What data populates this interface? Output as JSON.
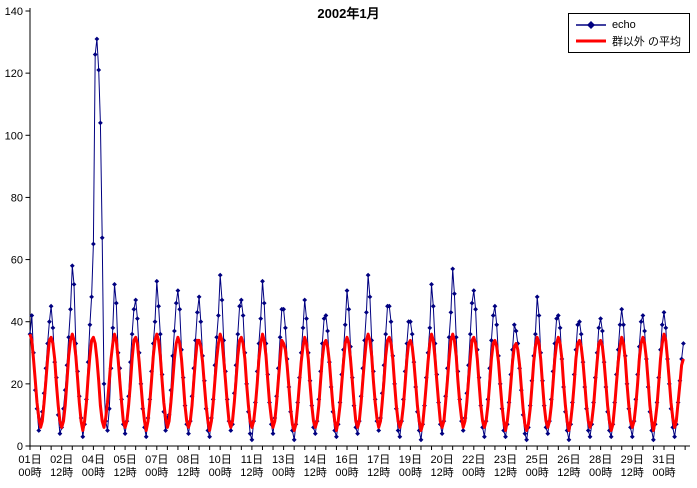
{
  "title": "2002年1月",
  "legend": {
    "items": [
      {
        "label": "echo",
        "color": "#000080",
        "marker": "diamond-line"
      },
      {
        "label": "群以外 の平均",
        "color": "#FF0000",
        "marker": "thick-line"
      }
    ]
  },
  "y_axis": {
    "min": 0,
    "max": 140,
    "ticks": [
      0,
      20,
      40,
      60,
      80,
      100,
      120,
      140
    ]
  },
  "x_axis": {
    "minor_tick_hours": 12,
    "label_interval_hours": 36,
    "tick_labels": [
      [
        "01日",
        "00時"
      ],
      [
        "02日",
        "12時"
      ],
      [
        "04日",
        "00時"
      ],
      [
        "05日",
        "12時"
      ],
      [
        "07日",
        "00時"
      ],
      [
        "08日",
        "12時"
      ],
      [
        "10日",
        "00時"
      ],
      [
        "11日",
        "12時"
      ],
      [
        "13日",
        "00時"
      ],
      [
        "14日",
        "12時"
      ],
      [
        "16日",
        "00時"
      ],
      [
        "17日",
        "12時"
      ],
      [
        "19日",
        "00時"
      ],
      [
        "20日",
        "12時"
      ],
      [
        "22日",
        "00時"
      ],
      [
        "23日",
        "12時"
      ],
      [
        "25日",
        "00時"
      ],
      [
        "26日",
        "12時"
      ],
      [
        "28日",
        "00時"
      ],
      [
        "29日",
        "12時"
      ],
      [
        "31日",
        "00時"
      ]
    ]
  },
  "chart_data": {
    "type": "line",
    "title": "2002年1月",
    "xlabel": "",
    "ylabel": "",
    "ylim": [
      0,
      140
    ],
    "grid": false,
    "legend_position": "top-right",
    "x_unit": "hours from 01日00時",
    "x_start_hour": 0,
    "x_step_hours": 2,
    "x_total_hours": 744,
    "series": [
      {
        "name": "echo",
        "color": "#000080",
        "marker": "diamond",
        "line_width": 1,
        "values": [
          36,
          42,
          30,
          18,
          12,
          5,
          8,
          11,
          17,
          25,
          33,
          40,
          45,
          38,
          27,
          22,
          10,
          4,
          6,
          12,
          18,
          26,
          35,
          44,
          58,
          52,
          33,
          24,
          16,
          9,
          3,
          7,
          15,
          27,
          39,
          48,
          65,
          126,
          131,
          121,
          104,
          67,
          20,
          8,
          5,
          12,
          25,
          38,
          52,
          46,
          30,
          25,
          15,
          7,
          4,
          8,
          16,
          27,
          36,
          44,
          47,
          41,
          30,
          20,
          12,
          6,
          3,
          9,
          15,
          24,
          33,
          40,
          53,
          45,
          36,
          23,
          11,
          5,
          9,
          10,
          18,
          29,
          37,
          46,
          50,
          44,
          31,
          22,
          13,
          7,
          4,
          8,
          16,
          25,
          34,
          43,
          48,
          40,
          29,
          21,
          12,
          5,
          3,
          9,
          15,
          26,
          35,
          42,
          55,
          47,
          34,
          24,
          15,
          8,
          5,
          7,
          17,
          26,
          36,
          45,
          47,
          42,
          30,
          20,
          11,
          4,
          2,
          8,
          14,
          24,
          33,
          41,
          53,
          46,
          33,
          23,
          14,
          7,
          4,
          9,
          16,
          25,
          35,
          44,
          44,
          38,
          28,
          19,
          11,
          5,
          2,
          7,
          14,
          22,
          30,
          38,
          47,
          41,
          30,
          21,
          13,
          6,
          4,
          8,
          15,
          24,
          33,
          41,
          42,
          37,
          27,
          19,
          11,
          5,
          3,
          7,
          14,
          23,
          31,
          39,
          50,
          44,
          32,
          22,
          13,
          6,
          4,
          8,
          16,
          25,
          34,
          43,
          55,
          48,
          34,
          24,
          15,
          8,
          5,
          9,
          17,
          26,
          36,
          45,
          45,
          40,
          29,
          20,
          12,
          5,
          3,
          8,
          15,
          24,
          33,
          40,
          40,
          36,
          27,
          19,
          11,
          5,
          2,
          7,
          13,
          22,
          30,
          38,
          52,
          45,
          33,
          23,
          14,
          7,
          4,
          8,
          16,
          25,
          35,
          43,
          57,
          49,
          35,
          24,
          15,
          8,
          5,
          9,
          17,
          26,
          36,
          46,
          50,
          44,
          31,
          22,
          13,
          6,
          3,
          8,
          15,
          25,
          34,
          42,
          45,
          39,
          29,
          20,
          12,
          5,
          3,
          7,
          14,
          23,
          31,
          39,
          37,
          33,
          25,
          18,
          10,
          4,
          2,
          6,
          13,
          21,
          29,
          36,
          48,
          42,
          30,
          21,
          13,
          6,
          4,
          8,
          15,
          24,
          33,
          41,
          42,
          38,
          28,
          19,
          11,
          5,
          2,
          7,
          14,
          23,
          31,
          39,
          40,
          36,
          27,
          19,
          12,
          5,
          3,
          7,
          14,
          22,
          30,
          38,
          41,
          37,
          27,
          19,
          11,
          5,
          3,
          7,
          14,
          23,
          31,
          39,
          44,
          39,
          29,
          20,
          12,
          6,
          3,
          8,
          15,
          23,
          32,
          40,
          42,
          37,
          28,
          19,
          11,
          5,
          2,
          7,
          14,
          22,
          31,
          39,
          43,
          38,
          28,
          20,
          12,
          6,
          3,
          7,
          14,
          21,
          28,
          33
        ]
      },
      {
        "name": "群以外 の平均",
        "color": "#FF0000",
        "marker": "none",
        "line_width": 3,
        "values": [
          36,
          34,
          28,
          21,
          14,
          9,
          6,
          8,
          14,
          21,
          28,
          34,
          35,
          33,
          28,
          20,
          13,
          8,
          6,
          8,
          13,
          21,
          29,
          34,
          36,
          34,
          29,
          22,
          14,
          8,
          5,
          8,
          14,
          22,
          29,
          34,
          35,
          33,
          28,
          21,
          13,
          8,
          6,
          9,
          14,
          21,
          28,
          33,
          36,
          34,
          28,
          21,
          14,
          8,
          6,
          8,
          13,
          20,
          28,
          34,
          35,
          33,
          27,
          20,
          13,
          8,
          5,
          8,
          14,
          21,
          29,
          34,
          36,
          34,
          29,
          21,
          14,
          9,
          6,
          8,
          14,
          21,
          28,
          33,
          35,
          33,
          28,
          21,
          13,
          8,
          6,
          8,
          13,
          21,
          28,
          34,
          34,
          32,
          27,
          20,
          13,
          8,
          5,
          8,
          14,
          21,
          28,
          33,
          36,
          34,
          28,
          21,
          14,
          8,
          6,
          8,
          14,
          21,
          29,
          34,
          35,
          33,
          28,
          20,
          13,
          8,
          6,
          8,
          13,
          20,
          28,
          33,
          36,
          34,
          29,
          21,
          14,
          9,
          6,
          8,
          14,
          21,
          28,
          34,
          33,
          31,
          26,
          19,
          12,
          7,
          5,
          7,
          13,
          20,
          27,
          32,
          35,
          33,
          28,
          20,
          13,
          8,
          6,
          8,
          13,
          21,
          28,
          33,
          34,
          32,
          27,
          20,
          13,
          8,
          5,
          8,
          13,
          20,
          27,
          33,
          35,
          33,
          28,
          21,
          14,
          8,
          6,
          8,
          14,
          21,
          28,
          34,
          36,
          34,
          29,
          21,
          14,
          9,
          6,
          8,
          14,
          21,
          29,
          34,
          35,
          33,
          28,
          20,
          13,
          8,
          6,
          8,
          13,
          20,
          28,
          33,
          34,
          32,
          27,
          20,
          13,
          8,
          5,
          7,
          13,
          20,
          27,
          33,
          36,
          34,
          28,
          21,
          14,
          8,
          6,
          8,
          14,
          21,
          28,
          34,
          36,
          34,
          29,
          21,
          14,
          9,
          6,
          8,
          14,
          21,
          28,
          34,
          35,
          33,
          28,
          20,
          13,
          8,
          6,
          8,
          13,
          20,
          28,
          33,
          34,
          32,
          27,
          20,
          13,
          8,
          5,
          8,
          13,
          20,
          27,
          32,
          33,
          31,
          26,
          19,
          12,
          7,
          5,
          7,
          12,
          19,
          27,
          32,
          35,
          33,
          28,
          20,
          13,
          8,
          6,
          8,
          13,
          20,
          28,
          33,
          35,
          33,
          28,
          20,
          13,
          8,
          5,
          8,
          13,
          20,
          28,
          33,
          34,
          32,
          27,
          20,
          13,
          8,
          6,
          8,
          13,
          20,
          27,
          33,
          34,
          32,
          27,
          20,
          13,
          8,
          5,
          7,
          13,
          20,
          27,
          32,
          35,
          33,
          28,
          20,
          13,
          8,
          6,
          8,
          13,
          20,
          28,
          33,
          35,
          33,
          28,
          21,
          13,
          8,
          5,
          8,
          13,
          20,
          28,
          33,
          36,
          34,
          28,
          21,
          14,
          9,
          6,
          8,
          14,
          20,
          26,
          28
        ]
      }
    ]
  }
}
